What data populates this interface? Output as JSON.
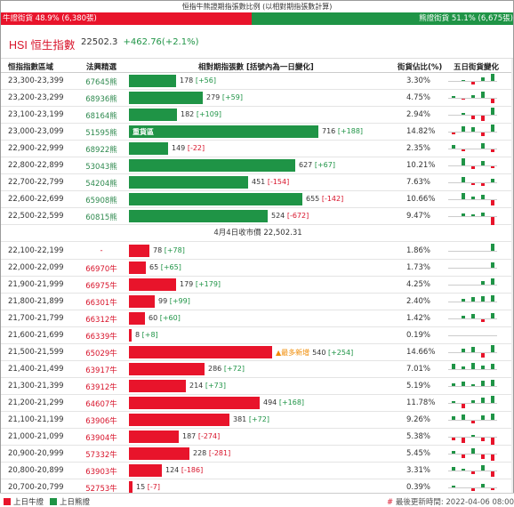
{
  "header": {
    "title": "恒指牛熊證期指張數比例 (以相對期指張數計算)",
    "bull_label": "牛證街貨 48.9% (6,380張)",
    "bear_label": "熊證街貨 51.1% (6,675張)",
    "bull_ratio": 0.489
  },
  "index": {
    "code": "HSI",
    "name": "恒生指數",
    "value": "22502.3",
    "change": "+462.76(+2.1%)"
  },
  "table": {
    "columns": [
      "恒指指數區域",
      "法興精選",
      "相對期指張數 [括號內為一日變化]",
      "街貨佔比(%)",
      "五日街貨變化"
    ],
    "close_text": "4月4日收市價 22,502.31",
    "bear_rows": [
      {
        "range": "23,300-23,399",
        "code": "67645熊",
        "contracts": 178,
        "qty": "178",
        "chg": "[+56]",
        "pct": "3.30%",
        "spark": [
          0,
          1,
          -3,
          4,
          8
        ]
      },
      {
        "range": "23,200-23,299",
        "code": "68936熊",
        "contracts": 279,
        "qty": "279",
        "chg": "[+59]",
        "pct": "4.75%",
        "spark": [
          2,
          -1,
          3,
          7,
          -5
        ]
      },
      {
        "range": "23,100-23,199",
        "code": "68164熊",
        "contracts": 182,
        "qty": "182",
        "chg": "[+109]",
        "pct": "2.94%",
        "spark": [
          0,
          2,
          -4,
          -6,
          8
        ]
      },
      {
        "range": "23,000-23,099",
        "code": "51595熊",
        "contracts": 716,
        "qty": "716",
        "chg": "[+188]",
        "pct": "14.82%",
        "tag": "重貨區",
        "spark": [
          -2,
          6,
          5,
          -4,
          8
        ]
      },
      {
        "range": "22,900-22,999",
        "code": "68922熊",
        "contracts": 149,
        "qty": "149",
        "chg": "[-22]",
        "pct": "2.35%",
        "spark": [
          4,
          -2,
          0,
          6,
          -3
        ]
      },
      {
        "range": "22,800-22,899",
        "code": "53043熊",
        "contracts": 627,
        "qty": "627",
        "chg": "[+67]",
        "pct": "10.21%",
        "spark": [
          0,
          8,
          -3,
          5,
          -2
        ]
      },
      {
        "range": "22,700-22,799",
        "code": "54204熊",
        "contracts": 451,
        "qty": "451",
        "chg": "[-154]",
        "pct": "7.63%",
        "spark": [
          0,
          6,
          -2,
          -3,
          4
        ]
      },
      {
        "range": "22,600-22,699",
        "code": "65908熊",
        "contracts": 655,
        "qty": "655",
        "chg": "[-142]",
        "pct": "10.66%",
        "spark": [
          0,
          7,
          3,
          5,
          -6
        ]
      },
      {
        "range": "22,500-22,599",
        "code": "60815熊",
        "contracts": 524,
        "qty": "524",
        "chg": "[-672]",
        "pct": "9.47%",
        "spark": [
          0,
          3,
          2,
          4,
          -9
        ]
      }
    ],
    "bull_rows": [
      {
        "range": "22,100-22,199",
        "code": "-",
        "contracts": 78,
        "qty": "78",
        "chg": "[+78]",
        "pct": "1.86%",
        "spark": [
          0,
          0,
          0,
          0,
          8
        ]
      },
      {
        "range": "22,000-22,099",
        "code": "66970牛",
        "contracts": 65,
        "qty": "65",
        "chg": "[+65]",
        "pct": "1.73%",
        "spark": [
          0,
          0,
          0,
          0,
          6
        ]
      },
      {
        "range": "21,900-21,999",
        "code": "66975牛",
        "contracts": 179,
        "qty": "179",
        "chg": "[+179]",
        "pct": "4.25%",
        "spark": [
          0,
          0,
          0,
          4,
          7
        ]
      },
      {
        "range": "21,800-21,899",
        "code": "66301牛",
        "contracts": 99,
        "qty": "99",
        "chg": "[+99]",
        "pct": "2.40%",
        "spark": [
          0,
          3,
          5,
          6,
          7
        ]
      },
      {
        "range": "21,700-21,799",
        "code": "66312牛",
        "contracts": 60,
        "qty": "60",
        "chg": "[+60]",
        "pct": "1.42%",
        "spark": [
          0,
          3,
          5,
          -3,
          6
        ]
      },
      {
        "range": "21,600-21,699",
        "code": "66339牛",
        "contracts": 8,
        "qty": "8",
        "chg": "[+8]",
        "pct": "0.19%",
        "spark": [
          0,
          0,
          0,
          0,
          0
        ]
      },
      {
        "range": "21,500-21,599",
        "code": "65029牛",
        "contracts": 540,
        "qty": "540",
        "chg": "[+254]",
        "pct": "14.66%",
        "tag": "▲最多新增",
        "spark": [
          0,
          4,
          6,
          -5,
          8
        ]
      },
      {
        "range": "21,400-21,499",
        "code": "63917牛",
        "contracts": 286,
        "qty": "286",
        "chg": "[+72]",
        "pct": "7.01%",
        "spark": [
          6,
          3,
          7,
          4,
          6
        ]
      },
      {
        "range": "21,300-21,399",
        "code": "63912牛",
        "contracts": 214,
        "qty": "214",
        "chg": "[+73]",
        "pct": "5.19%",
        "spark": [
          3,
          5,
          2,
          6,
          7
        ]
      },
      {
        "range": "21,200-21,299",
        "code": "64607牛",
        "contracts": 494,
        "qty": "494",
        "chg": "[+168]",
        "pct": "11.78%",
        "spark": [
          2,
          -5,
          3,
          6,
          8
        ]
      },
      {
        "range": "21,100-21,199",
        "code": "63906牛",
        "contracts": 381,
        "qty": "381",
        "chg": "[+72]",
        "pct": "9.26%",
        "spark": [
          4,
          6,
          -3,
          5,
          7
        ]
      },
      {
        "range": "21,000-21,099",
        "code": "63904牛",
        "contracts": 187,
        "qty": "187",
        "chg": "[-274]",
        "pct": "5.38%",
        "spark": [
          -3,
          -6,
          2,
          -4,
          -8
        ]
      },
      {
        "range": "20,900-20,999",
        "code": "57332牛",
        "contracts": 228,
        "qty": "228",
        "chg": "[-281]",
        "pct": "5.45%",
        "spark": [
          3,
          -4,
          6,
          -5,
          -7
        ]
      },
      {
        "range": "20,800-20,899",
        "code": "63903牛",
        "contracts": 124,
        "qty": "124",
        "chg": "[-186]",
        "pct": "3.31%",
        "spark": [
          4,
          2,
          -3,
          6,
          -6
        ]
      },
      {
        "range": "20,700-20,799",
        "code": "52753牛",
        "contracts": 15,
        "qty": "15",
        "chg": "[-7]",
        "pct": "0.39%",
        "spark": [
          2,
          0,
          -3,
          4,
          -2
        ]
      }
    ]
  },
  "footer": {
    "legend_bull": "上日牛證",
    "legend_bear": "上日熊證",
    "hash": "#",
    "updated": "最後更新時間: 2022-04-06 08:00"
  },
  "colors": {
    "bull": "#e8142b",
    "bear": "#1f9446",
    "accent": "#d8142b",
    "flag": "#f08a00"
  }
}
